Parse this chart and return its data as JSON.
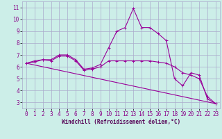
{
  "xlabel": "Windchill (Refroidissement éolien,°C)",
  "bg_color": "#cceee8",
  "grid_color": "#aaaacc",
  "line_color": "#990099",
  "x_values": [
    0,
    1,
    2,
    3,
    4,
    5,
    6,
    7,
    8,
    9,
    10,
    11,
    12,
    13,
    14,
    15,
    16,
    17,
    18,
    19,
    20,
    21,
    22,
    23
  ],
  "y_series1": [
    6.3,
    6.5,
    6.6,
    6.6,
    7.0,
    7.0,
    6.6,
    5.8,
    5.9,
    6.2,
    7.6,
    9.0,
    9.3,
    10.9,
    9.3,
    9.3,
    8.8,
    8.2,
    5.0,
    4.4,
    5.5,
    5.3,
    3.3,
    2.9
  ],
  "y_series2": [
    6.3,
    6.4,
    6.6,
    6.5,
    6.9,
    6.9,
    6.5,
    5.7,
    5.8,
    6.0,
    6.5,
    6.5,
    6.5,
    6.5,
    6.5,
    6.5,
    6.4,
    6.3,
    6.0,
    5.5,
    5.3,
    5.0,
    3.5,
    2.9
  ],
  "y_linear_start": 6.3,
  "y_linear_end": 2.9,
  "x_linear_start": 0,
  "x_linear_end": 23,
  "ylim": [
    2.5,
    11.5
  ],
  "xlim": [
    -0.5,
    23.5
  ],
  "yticks": [
    3,
    4,
    5,
    6,
    7,
    8,
    9,
    10,
    11
  ],
  "xticks": [
    0,
    1,
    2,
    3,
    4,
    5,
    6,
    7,
    8,
    9,
    10,
    11,
    12,
    13,
    14,
    15,
    16,
    17,
    18,
    19,
    20,
    21,
    22,
    23
  ],
  "xlabel_fontsize": 5.5,
  "tick_fontsize": 5.5,
  "linewidth": 0.8,
  "marker_size": 3
}
